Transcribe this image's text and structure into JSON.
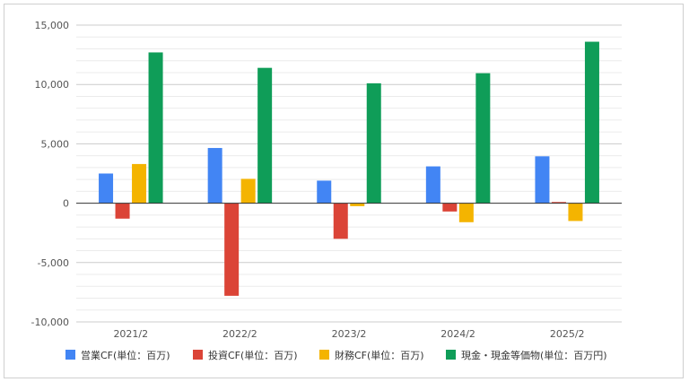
{
  "chart_data": {
    "type": "bar",
    "categories": [
      "2021/2",
      "2022/2",
      "2023/2",
      "2024/2",
      "2025/2"
    ],
    "series": [
      {
        "name": "営業CF(単位：百万)",
        "color": "#4285f4",
        "values": [
          2500,
          4650,
          1900,
          3100,
          3950
        ]
      },
      {
        "name": "投資CF(単位：百万)",
        "color": "#db4437",
        "values": [
          -1300,
          -7800,
          -3000,
          -700,
          100
        ]
      },
      {
        "name": "財務CF(単位：百万)",
        "color": "#f4b400",
        "values": [
          3300,
          2050,
          -250,
          -1600,
          -1500
        ]
      },
      {
        "name": "現金・現金等価物(単位：百万円)",
        "color": "#0f9d58",
        "values": [
          12700,
          11400,
          10100,
          10950,
          13600
        ]
      }
    ],
    "ylim": [
      -10000,
      15000
    ],
    "yticks": [
      15000,
      10000,
      5000,
      0,
      -5000,
      -10000
    ],
    "ytick_labels": [
      "15,000",
      "10,000",
      "5,000",
      "0",
      "-5,000",
      "-10,000"
    ],
    "grid": true,
    "legend_position": "bottom"
  }
}
